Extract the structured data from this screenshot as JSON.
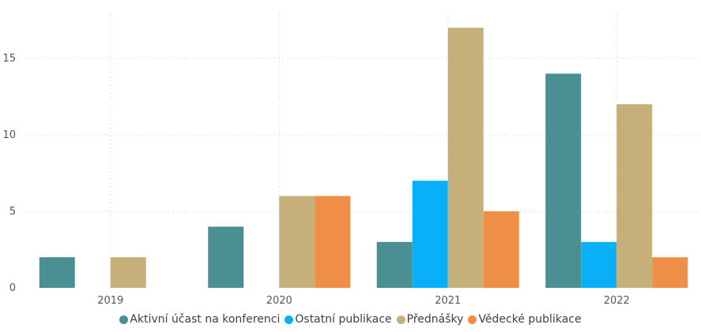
{
  "chart_data": {
    "type": "bar",
    "categories": [
      "2019",
      "2020",
      "2021",
      "2022"
    ],
    "series": [
      {
        "name": "Aktivní účast na konferenci",
        "color": "#4a8f92",
        "values": [
          2,
          4,
          3,
          14
        ]
      },
      {
        "name": "Ostatní publikace",
        "color": "#0ab0f7",
        "values": [
          0,
          0,
          7,
          3
        ]
      },
      {
        "name": "Přednášky",
        "color": "#c6b07a",
        "values": [
          2,
          6,
          17,
          12
        ]
      },
      {
        "name": "Vědecké publikace",
        "color": "#ef8e47",
        "values": [
          0,
          6,
          5,
          2
        ]
      }
    ],
    "yticks": [
      "0",
      "5",
      "10",
      "15"
    ],
    "ylim": [
      0,
      18.5
    ],
    "grid": true,
    "legend_position": "bottom"
  }
}
